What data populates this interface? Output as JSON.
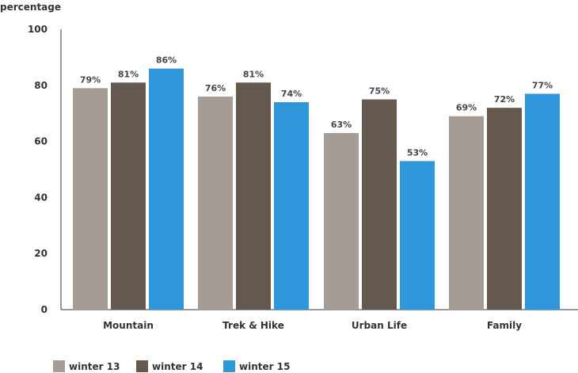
{
  "chart_data": {
    "type": "bar",
    "ylabel": "percentage",
    "xlabel": "",
    "title": "",
    "ylim": [
      0,
      100
    ],
    "yticks": [
      0,
      20,
      40,
      60,
      80,
      100
    ],
    "grid": false,
    "legend_position": "bottom-left",
    "categories": [
      "Mountain",
      "Trek & Hike",
      "Urban Life",
      "Family"
    ],
    "series": [
      {
        "name": "winter 13",
        "color": "#a59c95",
        "values": [
          79,
          76,
          63,
          69
        ],
        "labels": [
          "79%",
          "76%",
          "63%",
          "69%"
        ]
      },
      {
        "name": "winter 14",
        "color": "#65584c",
        "values": [
          81,
          81,
          75,
          72
        ],
        "labels": [
          "81%",
          "81%",
          "75%",
          "72%"
        ]
      },
      {
        "name": "winter 15",
        "color": "#2f97d9",
        "values": [
          86,
          74,
          53,
          77
        ],
        "labels": [
          "86%",
          "74%",
          "53%",
          "77%"
        ]
      }
    ]
  }
}
